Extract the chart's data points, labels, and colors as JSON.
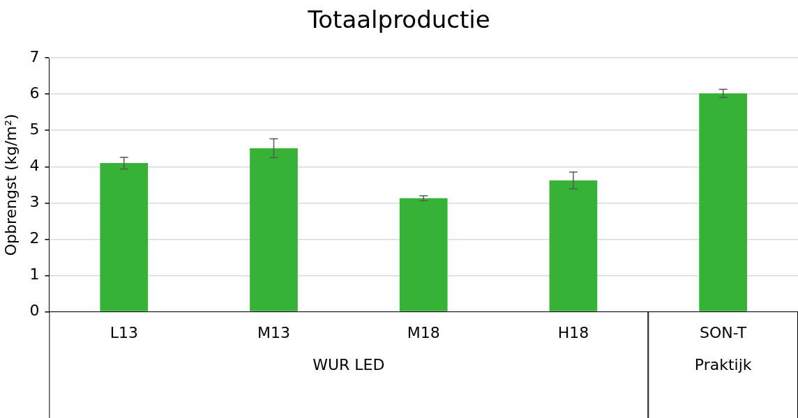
{
  "chart_data": {
    "type": "bar",
    "title": "Totaalproductie",
    "ylabel": "Opbrengst (kg/m²)",
    "categories": [
      "L13",
      "M13",
      "M18",
      "H18",
      "SON-T"
    ],
    "values": [
      4.1,
      4.51,
      3.13,
      3.62,
      6.02
    ],
    "errors": [
      0.16,
      0.26,
      0.07,
      0.23,
      0.11
    ],
    "color": "#36b336",
    "ylim": [
      0,
      7
    ],
    "yticks": [
      0,
      1,
      2,
      3,
      4,
      5,
      6,
      7
    ],
    "grid": "y",
    "legend": false,
    "annotations": [
      "WUR LED",
      "Praktijk"
    ]
  }
}
